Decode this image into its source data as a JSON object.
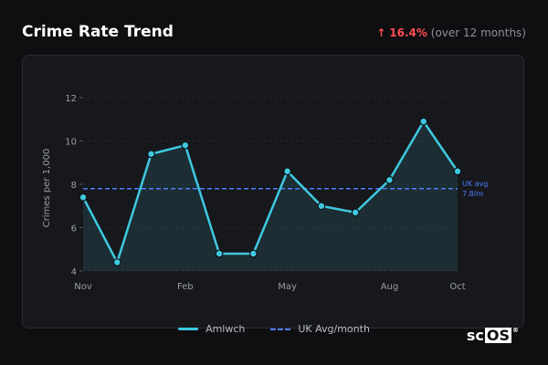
{
  "header": {
    "title": "Crime Rate Trend",
    "trend_arrow": "↑",
    "trend_pct": "16.4%",
    "trend_note": "(over 12 months)"
  },
  "colors": {
    "series": "#3ec9e0",
    "average": "#4f7bff",
    "trend_up": "#ff4d4f"
  },
  "chart_data": {
    "type": "line",
    "ylabel": "Crimes per 1,000",
    "ylim": [
      4,
      12
    ],
    "yticks": [
      4,
      6,
      8,
      10,
      12
    ],
    "x_index": [
      0,
      1,
      2,
      3,
      4,
      5,
      6,
      7,
      8,
      9,
      10,
      11
    ],
    "xtick_labels": [
      {
        "index": 0,
        "label": "Nov"
      },
      {
        "index": 3,
        "label": "Feb"
      },
      {
        "index": 6,
        "label": "May"
      },
      {
        "index": 9,
        "label": "Aug"
      },
      {
        "index": 11,
        "label": "Oct"
      }
    ],
    "series": [
      {
        "name": "Amlwch",
        "values": [
          7.4,
          4.4,
          9.4,
          9.8,
          4.8,
          4.8,
          8.6,
          7.0,
          6.7,
          8.2,
          10.9,
          8.6
        ]
      }
    ],
    "reference_line": {
      "name": "UK Avg/month",
      "value": 7.8,
      "label_line1": "UK avg",
      "label_line2": "7.8/m"
    },
    "grid": true,
    "legend_position": "bottom"
  },
  "legend": {
    "series_label": "Amlwch",
    "avg_label": "UK Avg/month"
  },
  "logo": {
    "prefix": "sc",
    "boxed": "OS",
    "mark": "®"
  }
}
